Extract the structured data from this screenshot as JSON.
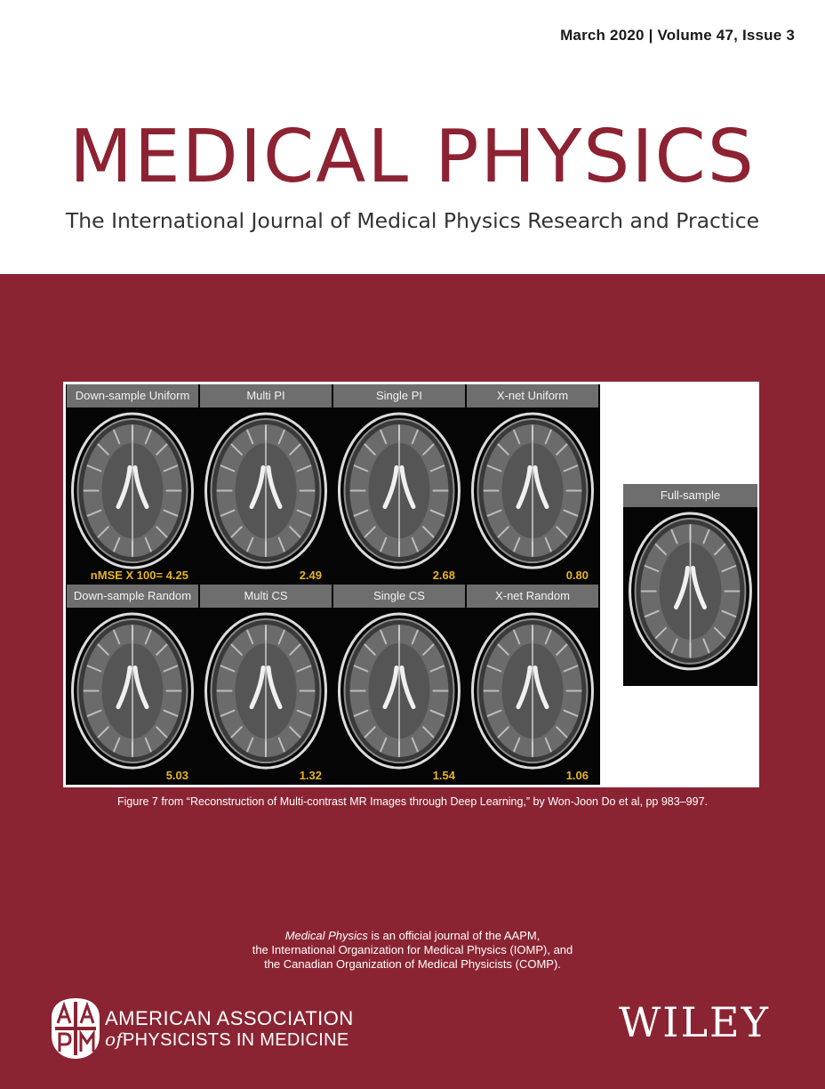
{
  "issue": {
    "date": "March 2020",
    "separator": "|",
    "volume": "Volume 47, Issue 3"
  },
  "masthead": {
    "title": "MEDICAL PHYSICS",
    "subtitle": "The International Journal of Medical Physics Research and Practice"
  },
  "figure": {
    "top_row": [
      {
        "label": "Down-sample Uniform",
        "score": "nMSE X 100= 4.25"
      },
      {
        "label": "Multi PI",
        "score": "2.49"
      },
      {
        "label": "Single PI",
        "score": "2.68"
      },
      {
        "label": "X-net Uniform",
        "score": "0.80"
      }
    ],
    "bottom_row": [
      {
        "label": "Down-sample Random",
        "score": "5.03"
      },
      {
        "label": "Multi CS",
        "score": "1.32"
      },
      {
        "label": "Single CS",
        "score": "1.54"
      },
      {
        "label": "X-net Random",
        "score": "1.06"
      }
    ],
    "reference_label": "Full-sample",
    "caption": "Figure 7 from “Reconstruction of Multi-contrast MR  Images through Deep Learning,” by Won-Joon Do et al, pp 983–997."
  },
  "affiliation": {
    "journal_name": "Medical Physics",
    "line1_rest": " is an official journal of the AAPM,",
    "line2": "the International Organization for Medical Physics (IOMP), and",
    "line3": "the Canadian Organization of Medical Physicists (COMP)."
  },
  "aapm_logo": {
    "emblem_text": "AAPM",
    "line1": "AMERICAN ASSOCIATION",
    "line2_of": "of",
    "line2_rest": "PHYSICISTS IN MEDICINE"
  },
  "publisher": "WILEY",
  "colors": {
    "brand_red": "#8b2432",
    "title_red": "#8c2232",
    "score_yellow": "#e6b422",
    "label_gray": "#6e6e6e"
  }
}
